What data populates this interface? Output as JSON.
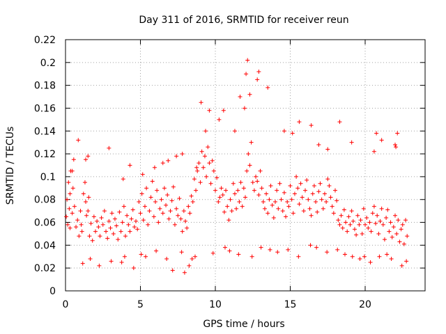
{
  "chart_data": {
    "type": "scatter",
    "title": "Day 311 of 2016, SRMTID for receiver reun",
    "xlabel": "GPS time / hours",
    "ylabel": "SRMTID / TECUs",
    "xlim": [
      0,
      24
    ],
    "ylim": [
      0,
      0.22
    ],
    "xticks": [
      0,
      5,
      10,
      15,
      20
    ],
    "yticks": [
      0,
      0.02,
      0.04,
      0.06,
      0.08,
      0.1,
      0.12,
      0.14,
      0.16,
      0.18,
      0.2,
      0.22
    ],
    "grid": true,
    "marker": "+",
    "color": "#ff0000",
    "series": [
      {
        "name": "SRMTID",
        "x": [
          0.05,
          0.1,
          0.15,
          0.2,
          0.25,
          0.3,
          0.35,
          0.45,
          0.5,
          0.55,
          0.6,
          0.7,
          0.8,
          0.9,
          1.0,
          1.05,
          1.1,
          1.2,
          1.3,
          1.35,
          1.4,
          1.5,
          1.55,
          1.6,
          1.7,
          1.8,
          1.9,
          2.0,
          2.1,
          2.2,
          2.3,
          2.4,
          2.5,
          2.6,
          2.7,
          2.8,
          2.9,
          3.0,
          3.1,
          3.2,
          3.3,
          3.4,
          3.5,
          3.6,
          3.7,
          3.8,
          3.9,
          4.0,
          4.1,
          4.2,
          4.3,
          4.4,
          4.5,
          4.6,
          4.7,
          4.8,
          4.9,
          5.0,
          5.1,
          5.2,
          5.3,
          5.4,
          5.5,
          5.6,
          5.7,
          5.8,
          5.9,
          6.0,
          6.1,
          6.2,
          6.3,
          6.4,
          6.5,
          6.6,
          6.7,
          6.8,
          6.9,
          7.0,
          7.1,
          7.2,
          7.3,
          7.4,
          7.5,
          7.6,
          7.7,
          7.8,
          7.9,
          8.0,
          8.1,
          8.2,
          8.3,
          8.4,
          8.5,
          8.6,
          8.7,
          8.8,
          8.9,
          9.0,
          9.1,
          9.2,
          9.3,
          9.4,
          9.5,
          9.6,
          9.7,
          9.8,
          9.9,
          10.0,
          10.1,
          10.2,
          10.3,
          10.4,
          10.5,
          10.6,
          10.7,
          10.8,
          10.9,
          11.0,
          11.1,
          11.2,
          11.3,
          11.4,
          11.5,
          11.6,
          11.7,
          11.8,
          11.9,
          12.0,
          12.1,
          12.2,
          12.3,
          12.4,
          12.5,
          12.6,
          12.7,
          12.8,
          12.9,
          13.0,
          13.1,
          13.2,
          13.3,
          13.4,
          13.5,
          13.6,
          13.7,
          13.8,
          13.9,
          14.0,
          14.1,
          14.2,
          14.3,
          14.4,
          14.5,
          14.6,
          14.7,
          14.8,
          14.9,
          15.0,
          15.1,
          15.2,
          15.3,
          15.4,
          15.5,
          15.6,
          15.7,
          15.8,
          15.9,
          16.0,
          16.1,
          16.2,
          16.3,
          16.4,
          16.5,
          16.6,
          16.7,
          16.8,
          16.9,
          17.0,
          17.1,
          17.2,
          17.3,
          17.4,
          17.5,
          17.6,
          17.7,
          17.8,
          17.9,
          18.0,
          18.1,
          18.2,
          18.3,
          18.4,
          18.5,
          18.6,
          18.7,
          18.8,
          18.9,
          19.0,
          19.1,
          19.2,
          19.3,
          19.4,
          19.5,
          19.6,
          19.7,
          19.8,
          19.9,
          20.0,
          20.1,
          20.2,
          20.3,
          20.4,
          20.5,
          20.6,
          20.7,
          20.8,
          20.9,
          21.0,
          21.1,
          21.2,
          21.3,
          21.4,
          21.5,
          21.6,
          21.7,
          21.8,
          21.9,
          22.0,
          22.1,
          22.2,
          22.3,
          22.4,
          22.5,
          22.6,
          22.7,
          22.8,
          0.3,
          0.45,
          1.35,
          1.5,
          2.9,
          3.85,
          4.3,
          5.15,
          5.95,
          6.5,
          6.85,
          7.4,
          7.8,
          8.75,
          9.05,
          9.35,
          9.6,
          10.25,
          10.55,
          11.3,
          11.65,
          11.95,
          12.05,
          12.15,
          12.3,
          12.8,
          12.9,
          13.5,
          14.6,
          15.15,
          15.6,
          16.4,
          16.9,
          17.5,
          18.3,
          19.1,
          20.6,
          20.75,
          21.1,
          22.0,
          22.05,
          22.15,
          0.85,
          1.15,
          1.65,
          2.25,
          3.05,
          3.75,
          3.95,
          4.55,
          5.05,
          5.35,
          6.05,
          6.75,
          7.15,
          7.75,
          7.95,
          8.25,
          8.45,
          8.65,
          9.85,
          10.65,
          10.95,
          11.55,
          12.45,
          13.05,
          13.65,
          14.15,
          14.85,
          15.55,
          16.35,
          16.75,
          17.45,
          18.15,
          18.65,
          19.15,
          19.65,
          19.95,
          20.35,
          20.95,
          21.45,
          21.75,
          22.45,
          22.75
        ],
        "y": [
          0.065,
          0.08,
          0.058,
          0.095,
          0.072,
          0.085,
          0.105,
          0.068,
          0.09,
          0.115,
          0.074,
          0.056,
          0.062,
          0.048,
          0.07,
          0.058,
          0.052,
          0.085,
          0.095,
          0.078,
          0.066,
          0.07,
          0.082,
          0.048,
          0.059,
          0.044,
          0.065,
          0.052,
          0.061,
          0.056,
          0.048,
          0.064,
          0.058,
          0.07,
          0.052,
          0.046,
          0.061,
          0.055,
          0.068,
          0.05,
          0.063,
          0.057,
          0.045,
          0.069,
          0.052,
          0.06,
          0.074,
          0.048,
          0.066,
          0.058,
          0.052,
          0.063,
          0.071,
          0.056,
          0.061,
          0.054,
          0.078,
          0.068,
          0.085,
          0.062,
          0.074,
          0.09,
          0.058,
          0.07,
          0.082,
          0.096,
          0.065,
          0.078,
          0.088,
          0.06,
          0.072,
          0.08,
          0.068,
          0.09,
          0.075,
          0.084,
          0.063,
          0.07,
          0.079,
          0.091,
          0.058,
          0.072,
          0.066,
          0.081,
          0.063,
          0.052,
          0.07,
          0.061,
          0.055,
          0.074,
          0.068,
          0.083,
          0.078,
          0.098,
          0.088,
          0.105,
          0.112,
          0.095,
          0.122,
          0.108,
          0.118,
          0.1,
          0.126,
          0.112,
          0.094,
          0.114,
          0.105,
          0.088,
          0.099,
          0.078,
          0.082,
          0.09,
          0.084,
          0.069,
          0.088,
          0.074,
          0.062,
          0.08,
          0.07,
          0.094,
          0.085,
          0.072,
          0.088,
          0.078,
          0.095,
          0.074,
          0.09,
          0.082,
          0.105,
          0.12,
          0.11,
          0.13,
          0.095,
          0.088,
          0.1,
          0.096,
          0.084,
          0.105,
          0.09,
          0.078,
          0.072,
          0.085,
          0.068,
          0.08,
          0.092,
          0.075,
          0.064,
          0.078,
          0.088,
          0.072,
          0.094,
          0.08,
          0.07,
          0.086,
          0.065,
          0.078,
          0.074,
          0.092,
          0.08,
          0.068,
          0.085,
          0.1,
          0.09,
          0.076,
          0.094,
          0.082,
          0.07,
          0.088,
          0.097,
          0.08,
          0.072,
          0.066,
          0.085,
          0.092,
          0.078,
          0.069,
          0.087,
          0.094,
          0.08,
          0.072,
          0.085,
          0.078,
          0.098,
          0.092,
          0.082,
          0.074,
          0.068,
          0.088,
          0.079,
          0.062,
          0.058,
          0.066,
          0.055,
          0.071,
          0.06,
          0.052,
          0.065,
          0.058,
          0.07,
          0.061,
          0.054,
          0.049,
          0.066,
          0.058,
          0.062,
          0.05,
          0.072,
          0.058,
          0.064,
          0.055,
          0.06,
          0.052,
          0.068,
          0.074,
          0.059,
          0.066,
          0.05,
          0.061,
          0.072,
          0.058,
          0.045,
          0.064,
          0.071,
          0.052,
          0.06,
          0.047,
          0.056,
          0.066,
          0.05,
          0.062,
          0.043,
          0.054,
          0.058,
          0.041,
          0.062,
          0.048,
          0.055,
          0.105,
          0.115,
          0.118,
          0.125,
          0.098,
          0.11,
          0.102,
          0.108,
          0.112,
          0.114,
          0.118,
          0.12,
          0.108,
          0.165,
          0.14,
          0.158,
          0.15,
          0.158,
          0.14,
          0.17,
          0.16,
          0.19,
          0.202,
          0.172,
          0.185,
          0.192,
          0.178,
          0.14,
          0.138,
          0.148,
          0.145,
          0.128,
          0.124,
          0.148,
          0.13,
          0.122,
          0.138,
          0.132,
          0.128,
          0.126,
          0.138,
          0.132,
          0.024,
          0.028,
          0.022,
          0.026,
          0.025,
          0.03,
          0.02,
          0.032,
          0.03,
          0.035,
          0.028,
          0.018,
          0.034,
          0.016,
          0.022,
          0.028,
          0.03,
          0.033,
          0.038,
          0.035,
          0.032,
          0.03,
          0.038,
          0.036,
          0.034,
          0.036,
          0.03,
          0.04,
          0.038,
          0.034,
          0.036,
          0.032,
          0.03,
          0.028,
          0.03,
          0.025,
          0.03,
          0.032,
          0.028,
          0.022,
          0.026
        ]
      }
    ]
  }
}
